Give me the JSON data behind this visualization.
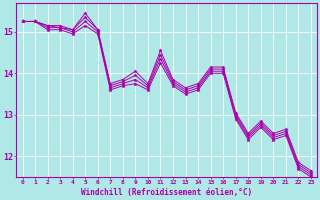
{
  "background_color": "#b0e8e8",
  "grid_color": "#d0f0f0",
  "line_color": "#aa00aa",
  "marker": "*",
  "xlabel": "Windchill (Refroidissement éolien,°C)",
  "xlabel_color": "#aa00aa",
  "tick_color": "#aa00aa",
  "spine_color": "#aa00aa",
  "ylim": [
    11.5,
    15.7
  ],
  "xlim": [
    -0.5,
    23.5
  ],
  "yticks": [
    12,
    13,
    14,
    15
  ],
  "xticks": [
    0,
    1,
    2,
    3,
    4,
    5,
    6,
    7,
    8,
    9,
    10,
    11,
    12,
    13,
    14,
    15,
    16,
    17,
    18,
    19,
    20,
    21,
    22,
    23
  ],
  "series": [
    [
      15.25,
      15.25,
      15.15,
      15.15,
      15.05,
      15.45,
      15.05,
      13.75,
      13.85,
      14.05,
      13.75,
      14.55,
      13.85,
      13.65,
      13.75,
      14.15,
      14.15,
      13.05,
      12.55,
      12.85,
      12.55,
      12.65,
      11.85,
      11.65
    ],
    [
      15.25,
      15.25,
      15.15,
      15.1,
      15.05,
      15.35,
      15.05,
      13.7,
      13.8,
      13.95,
      13.7,
      14.45,
      13.8,
      13.6,
      13.7,
      14.1,
      14.1,
      13.0,
      12.5,
      12.8,
      12.5,
      12.6,
      11.8,
      11.6
    ],
    [
      15.25,
      15.25,
      15.1,
      15.1,
      15.0,
      15.25,
      15.0,
      13.65,
      13.75,
      13.85,
      13.65,
      14.35,
      13.75,
      13.55,
      13.65,
      14.05,
      14.05,
      12.95,
      12.45,
      12.75,
      12.45,
      12.55,
      11.75,
      11.55
    ],
    [
      15.25,
      15.25,
      15.05,
      15.05,
      14.95,
      15.15,
      14.95,
      13.6,
      13.7,
      13.75,
      13.6,
      14.25,
      13.7,
      13.5,
      13.6,
      14.0,
      14.0,
      12.9,
      12.4,
      12.7,
      12.4,
      12.5,
      11.7,
      11.5
    ]
  ]
}
